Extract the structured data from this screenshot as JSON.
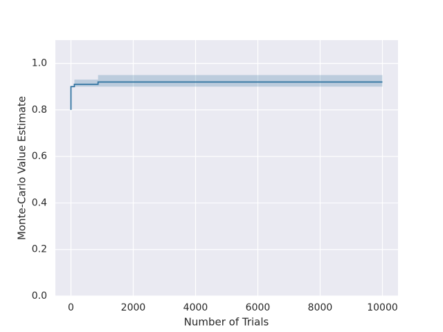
{
  "chart_data": {
    "type": "line",
    "x_label": "Number of Trials",
    "y_label": "Monte-Carlo Value Estimate",
    "x": [
      0,
      0,
      110,
      110,
      870,
      870,
      10000
    ],
    "series": [
      {
        "color": "#3274a1",
        "values": [
          0.8,
          0.9,
          0.9,
          0.91,
          0.91,
          0.92,
          0.92
        ]
      }
    ],
    "band": {
      "color": "#3274a1",
      "lower": [
        null,
        null,
        0.9,
        0.9,
        0.9,
        0.9,
        0.9
      ],
      "upper": [
        null,
        null,
        0.93,
        0.93,
        0.93,
        0.95,
        0.95
      ]
    },
    "xlim": [
      -500,
      10500
    ],
    "ylim": [
      0,
      1.1
    ],
    "xticks": [
      0,
      2000,
      4000,
      6000,
      8000,
      10000
    ],
    "yticks": [
      {
        "value": 0,
        "label": "0.0"
      },
      {
        "value": 0.2,
        "label": "0.2"
      },
      {
        "value": 0.4,
        "label": "0.4"
      },
      {
        "value": 0.6,
        "label": "0.6"
      },
      {
        "value": 0.8,
        "label": "0.8"
      },
      {
        "value": 1.0,
        "label": "1.0"
      }
    ],
    "grid": true
  }
}
